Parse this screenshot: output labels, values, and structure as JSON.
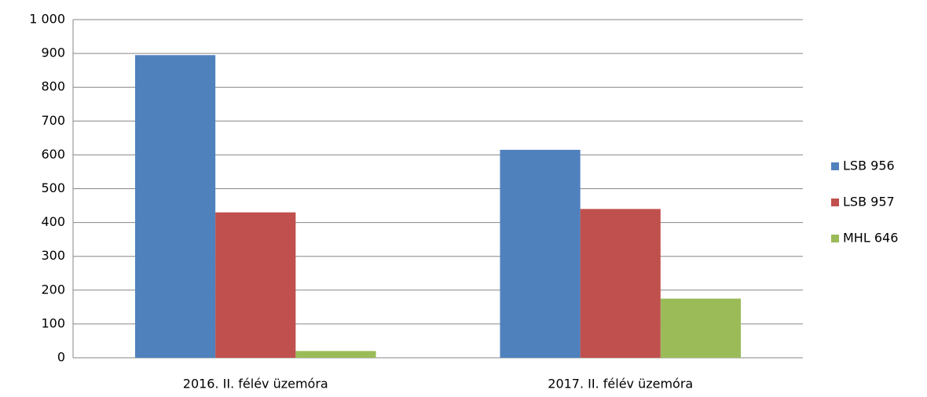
{
  "chart_data": {
    "type": "bar",
    "categories": [
      "2016. II. félév üzemóra",
      "2017. II. félév üzemóra"
    ],
    "series": [
      {
        "name": "LSB 956",
        "color": "#4f81bd",
        "values": [
          895,
          615
        ]
      },
      {
        "name": "LSB 957",
        "color": "#c0504d",
        "values": [
          430,
          440
        ]
      },
      {
        "name": "MHL 646",
        "color": "#9bbb59",
        "values": [
          20,
          175
        ]
      }
    ],
    "ylim": [
      0,
      1000
    ],
    "yticks": [
      0,
      100,
      200,
      300,
      400,
      500,
      600,
      700,
      800,
      900,
      {
        "value": 1000,
        "label": "1 000"
      }
    ],
    "grid": true,
    "legend": "right"
  }
}
